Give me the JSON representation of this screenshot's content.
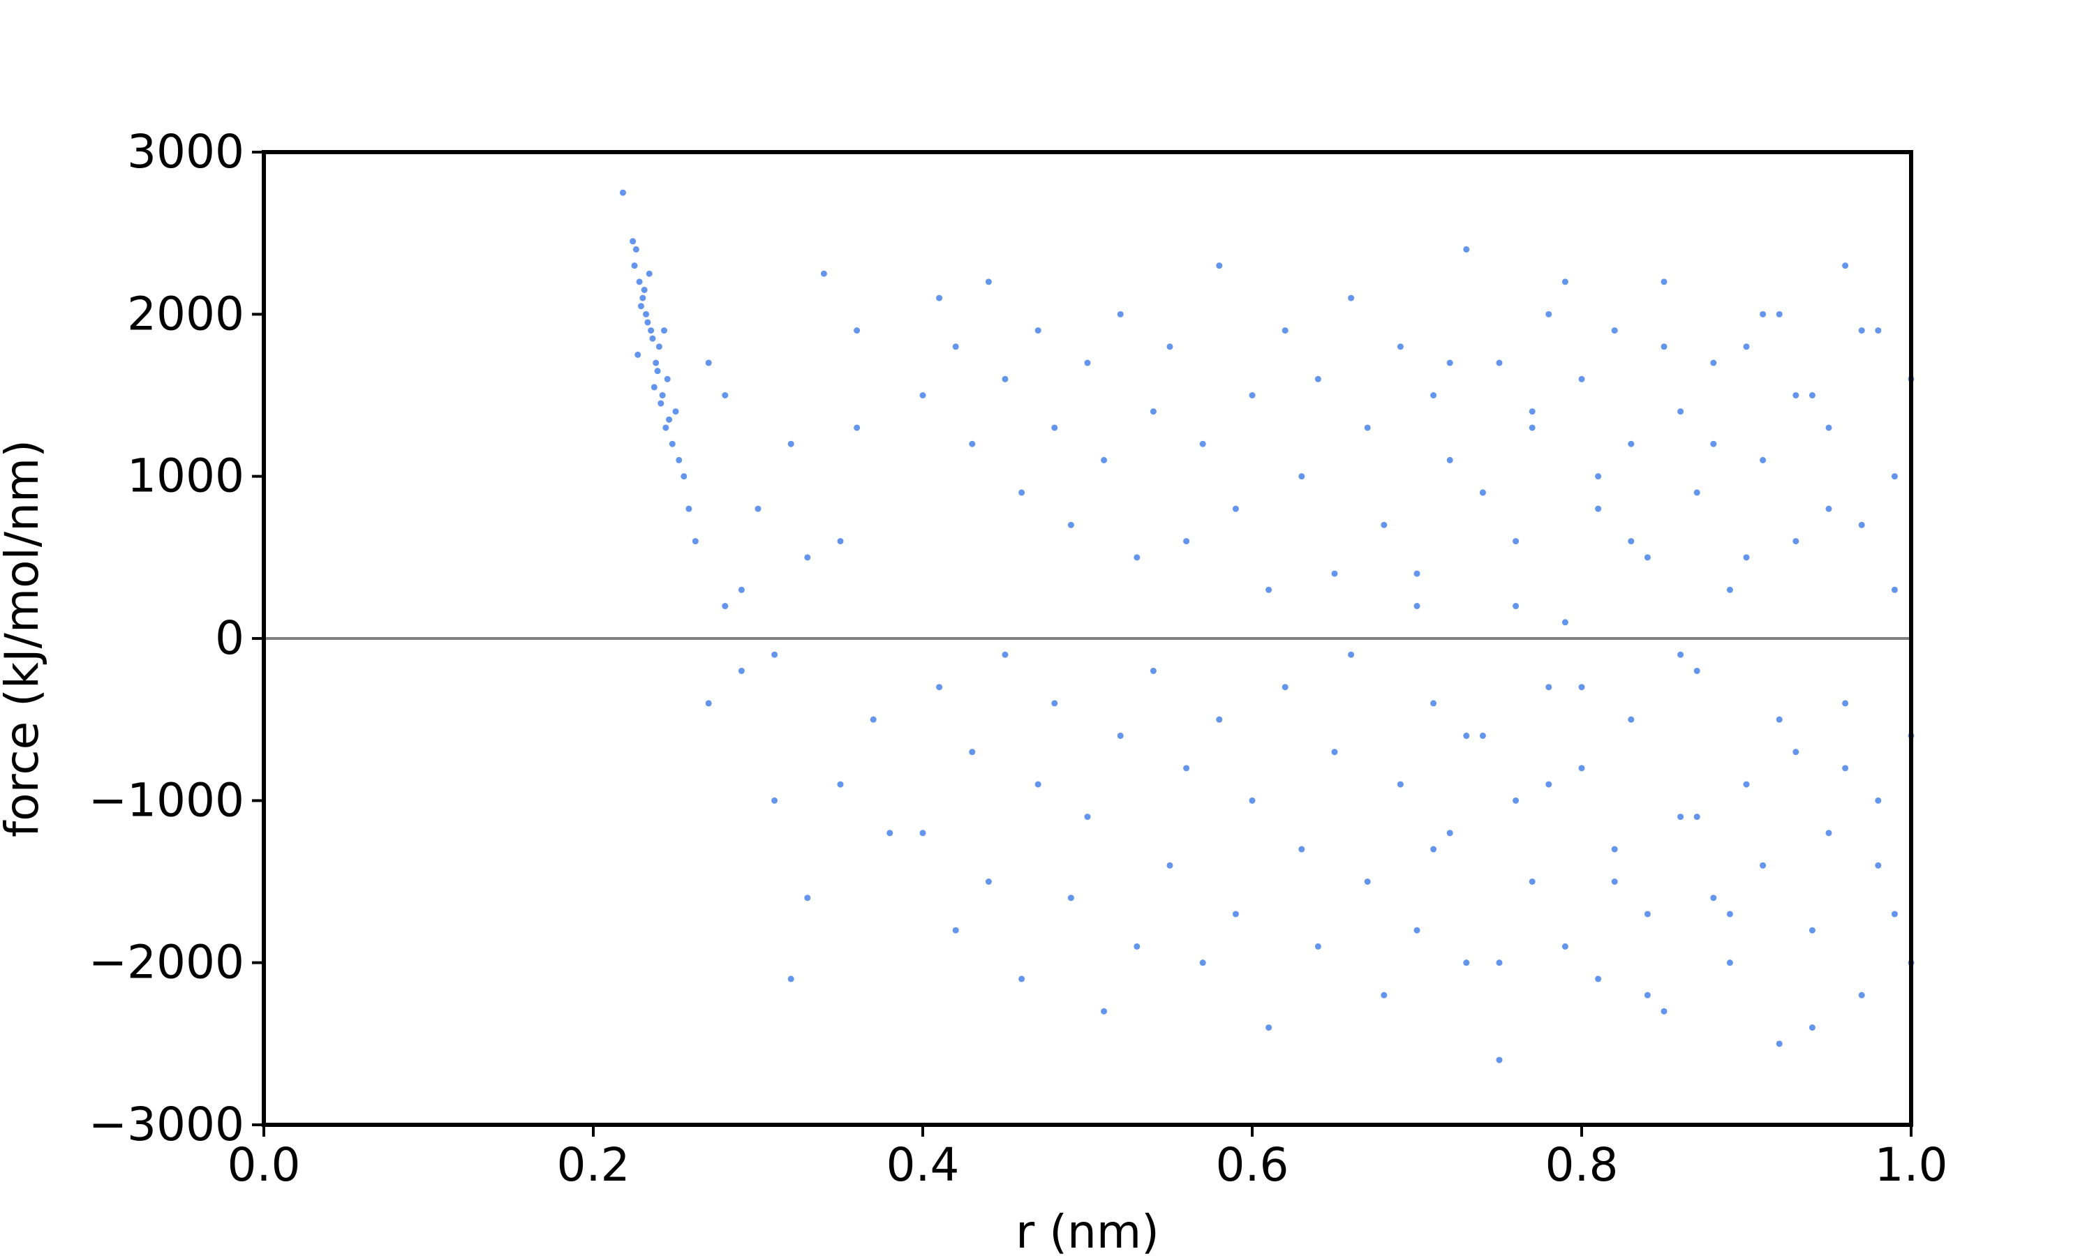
{
  "chart_data": {
    "type": "scatter",
    "xlabel": "r (nm)",
    "ylabel": "force (kJ/mol/nm)",
    "color": "#6495ed",
    "xlim": [
      0,
      1
    ],
    "xticks": [
      {
        "value": 0,
        "label": "0.0"
      },
      0.2,
      0.4,
      0.6,
      0.8,
      {
        "value": 1,
        "label": "1.0"
      }
    ],
    "ylim": [
      -3000,
      3000
    ],
    "yticks": [
      {
        "value": -3000,
        "label": "−3000"
      },
      {
        "value": -2000,
        "label": "−2000"
      },
      {
        "value": -1000,
        "label": "−1000"
      },
      0,
      1000,
      2000,
      3000
    ],
    "hline": 0,
    "hline_color": "#808080",
    "x": [
      0.225,
      0.23,
      0.235,
      0.228,
      0.24,
      0.232,
      0.238,
      0.226,
      0.245,
      0.233,
      0.229,
      0.242,
      0.236,
      0.25,
      0.231,
      0.227,
      0.239,
      0.244,
      0.234,
      0.248,
      0.252,
      0.237,
      0.241,
      0.224,
      0.255,
      0.258,
      0.246,
      0.262,
      0.243,
      0.218,
      0.27,
      0.28,
      0.29,
      0.3,
      0.31,
      0.32,
      0.33,
      0.34,
      0.35,
      0.36,
      0.27,
      0.29,
      0.31,
      0.33,
      0.35,
      0.37,
      0.28,
      0.32,
      0.36,
      0.38,
      0.4,
      0.41,
      0.42,
      0.43,
      0.44,
      0.45,
      0.46,
      0.47,
      0.48,
      0.49,
      0.5,
      0.51,
      0.52,
      0.53,
      0.54,
      0.55,
      0.56,
      0.57,
      0.58,
      0.59,
      0.6,
      0.61,
      0.62,
      0.63,
      0.64,
      0.65,
      0.66,
      0.67,
      0.68,
      0.69,
      0.7,
      0.71,
      0.72,
      0.73,
      0.74,
      0.75,
      0.76,
      0.77,
      0.78,
      0.79,
      0.8,
      0.81,
      0.82,
      0.83,
      0.84,
      0.85,
      0.86,
      0.87,
      0.88,
      0.89,
      0.9,
      0.91,
      0.92,
      0.93,
      0.94,
      0.95,
      0.96,
      0.97,
      0.98,
      0.99,
      1.0,
      0.4,
      0.41,
      0.42,
      0.43,
      0.44,
      0.45,
      0.46,
      0.47,
      0.48,
      0.49,
      0.5,
      0.51,
      0.52,
      0.53,
      0.54,
      0.55,
      0.56,
      0.57,
      0.58,
      0.59,
      0.6,
      0.61,
      0.62,
      0.63,
      0.64,
      0.65,
      0.66,
      0.67,
      0.68,
      0.69,
      0.7,
      0.71,
      0.72,
      0.73,
      0.74,
      0.75,
      0.76,
      0.77,
      0.78,
      0.79,
      0.8,
      0.81,
      0.82,
      0.83,
      0.84,
      0.85,
      0.86,
      0.87,
      0.88,
      0.89,
      0.9,
      0.91,
      0.92,
      0.93,
      0.94,
      0.95,
      0.96,
      0.97,
      0.98,
      0.99,
      1.0,
      0.7,
      0.71,
      0.72,
      0.73,
      0.74,
      0.75,
      0.76,
      0.77,
      0.78,
      0.79,
      0.8,
      0.81,
      0.82,
      0.83,
      0.84,
      0.85,
      0.86,
      0.87,
      0.88,
      0.89,
      0.9,
      0.91,
      0.92,
      0.93,
      0.94,
      0.95,
      0.96,
      0.97,
      0.98,
      0.99,
      1.0
    ],
    "values": [
      2300,
      2100,
      1900,
      2200,
      1800,
      2000,
      1700,
      2400,
      1600,
      1950,
      2050,
      1500,
      1850,
      1400,
      2150,
      1750,
      1650,
      1300,
      2250,
      1200,
      1100,
      1550,
      1450,
      2450,
      1000,
      800,
      1350,
      600,
      1900,
      2750,
      1700,
      1500,
      300,
      800,
      -100,
      1200,
      500,
      2250,
      -900,
      1300,
      -400,
      -200,
      -1000,
      -1600,
      600,
      -500,
      200,
      -2100,
      1900,
      -1200,
      1500,
      2100,
      1800,
      1200,
      2200,
      1600,
      900,
      1900,
      1300,
      700,
      1700,
      1100,
      2000,
      500,
      1400,
      1800,
      600,
      1200,
      2300,
      800,
      1500,
      300,
      1900,
      1000,
      1600,
      400,
      2100,
      1300,
      700,
      1800,
      200,
      1500,
      1100,
      2400,
      900,
      1700,
      600,
      1300,
      2000,
      100,
      1600,
      800,
      1900,
      1200,
      500,
      2200,
      1400,
      900,
      1700,
      300,
      1800,
      1100,
      2000,
      600,
      1500,
      1300,
      2300,
      700,
      1900,
      1000,
      1600,
      -1200,
      -300,
      -1800,
      -700,
      -1500,
      -100,
      -2100,
      -900,
      -400,
      -1600,
      -1100,
      -2300,
      -600,
      -1900,
      -200,
      -1400,
      -800,
      -2000,
      -500,
      -1700,
      -1000,
      -2400,
      -300,
      -1300,
      -1900,
      -700,
      -100,
      -1500,
      -2200,
      -900,
      -1800,
      -400,
      -1200,
      -2000,
      -600,
      -2600,
      -1000,
      -1500,
      -300,
      -1900,
      -800,
      -2100,
      -1300,
      -500,
      -1700,
      -2300,
      -1100,
      -200,
      -1600,
      -2000,
      -900,
      -1400,
      -2500,
      -700,
      -1800,
      -1200,
      -400,
      -2200,
      -1000,
      -1700,
      -600,
      400,
      -1300,
      1700,
      -600,
      900,
      -2000,
      200,
      1400,
      -900,
      2200,
      -300,
      1000,
      -1500,
      600,
      -2200,
      1800,
      -100,
      -1100,
      1200,
      -1700,
      500,
      2000,
      -500,
      1500,
      -2400,
      800,
      -800,
      1900,
      -1400,
      300,
      -2000
    ]
  }
}
